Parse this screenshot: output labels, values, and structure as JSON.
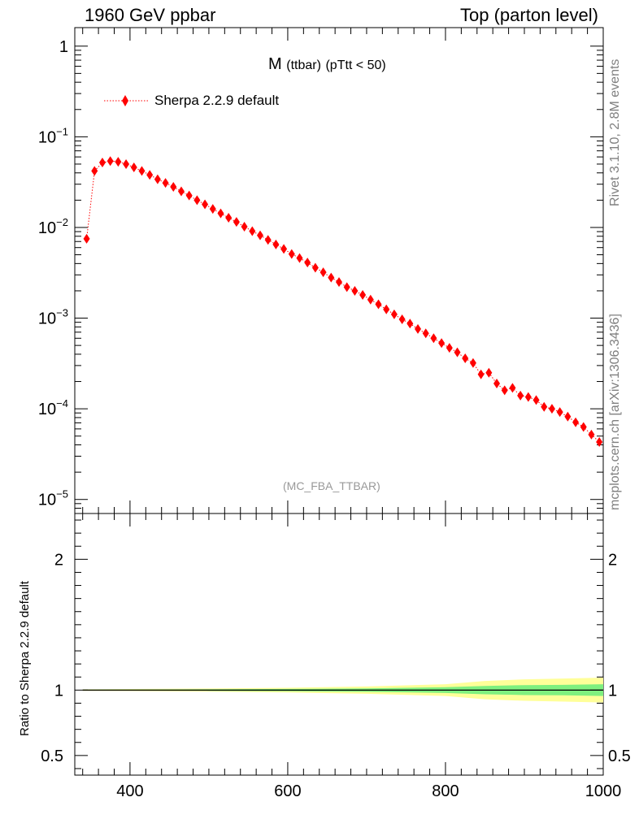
{
  "header": {
    "left": "1960 GeV ppbar",
    "right": "Top (parton level)"
  },
  "side_labels": {
    "rivet": "Rivet 3.1.10,  2.8M events",
    "mcplots": "mcplots.cern.ch [arXiv:1306.3436]"
  },
  "colors": {
    "mc": "#ff0000",
    "band_inner": "#7ff07f",
    "band_outer": "#ffff99"
  },
  "chart_data": [
    {
      "type": "scatter",
      "panel": "main",
      "title": "M",
      "title_sub": "(ttbar)",
      "title_cut": "(pTtt < 50)",
      "analysis_label": "(MC_FBA_TTBAR)",
      "legend": [
        "Sherpa 2.2.9 default"
      ],
      "yscale": "log",
      "xlim": [
        330,
        1000
      ],
      "ylim": [
        7e-06,
        1.6
      ],
      "ytick_values": [
        1,
        0.1,
        0.01,
        0.001,
        0.0001,
        1e-05
      ],
      "ytick_labels": [
        {
          "base": "1",
          "exp": ""
        },
        {
          "base": "10",
          "exp": "−1"
        },
        {
          "base": "10",
          "exp": "−2"
        },
        {
          "base": "10",
          "exp": "−3"
        },
        {
          "base": "10",
          "exp": "−4"
        },
        {
          "base": "10",
          "exp": "−5"
        }
      ],
      "series": [
        {
          "name": "Sherpa 2.2.9 default",
          "color": "#ff0000",
          "x": [
            345,
            355,
            365,
            375,
            385,
            395,
            405,
            415,
            425,
            435,
            445,
            455,
            465,
            475,
            485,
            495,
            505,
            515,
            525,
            535,
            545,
            555,
            565,
            575,
            585,
            595,
            605,
            615,
            625,
            635,
            645,
            655,
            665,
            675,
            685,
            695,
            705,
            715,
            725,
            735,
            745,
            755,
            765,
            775,
            785,
            795,
            805,
            815,
            825,
            835,
            845,
            855,
            865,
            875,
            885,
            895,
            905,
            915,
            925,
            935,
            945,
            955,
            965,
            975,
            985,
            995
          ],
          "y": [
            0.0075,
            0.042,
            0.052,
            0.054,
            0.053,
            0.05,
            0.046,
            0.042,
            0.038,
            0.034,
            0.031,
            0.028,
            0.025,
            0.0225,
            0.02,
            0.018,
            0.016,
            0.0143,
            0.0128,
            0.0115,
            0.0102,
            0.0091,
            0.0082,
            0.0073,
            0.0065,
            0.0058,
            0.0051,
            0.0046,
            0.0041,
            0.0036,
            0.0032,
            0.0028,
            0.0025,
            0.0022,
            0.002,
            0.0018,
            0.0016,
            0.00142,
            0.00125,
            0.0011,
            0.00097,
            0.00087,
            0.00076,
            0.00068,
            0.0006,
            0.00053,
            0.00047,
            0.00042,
            0.00036,
            0.00032,
            0.00024,
            0.00025,
            0.00019,
            0.00016,
            0.00017,
            0.00014,
            0.000135,
            0.000125,
            0.000105,
            0.0001,
            9.2e-05,
            8.2e-05,
            7.1e-05,
            6.3e-05,
            5.2e-05,
            4.3e-05
          ]
        }
      ]
    },
    {
      "type": "area",
      "panel": "ratio",
      "ylabel": "Ratio to Sherpa 2.2.9 default",
      "xlim": [
        330,
        1000
      ],
      "ylim": [
        0.35,
        2.35
      ],
      "ytick_values": [
        2,
        1,
        0.5
      ],
      "ytick_labels": [
        "2",
        "1",
        "0.5"
      ],
      "xtick_values": [
        400,
        600,
        800,
        1000
      ],
      "xtick_labels": [
        "400",
        "600",
        "800",
        "1000"
      ],
      "reference_line": 1,
      "band_x": [
        340,
        400,
        500,
        600,
        700,
        800,
        850,
        900,
        950,
        1000
      ],
      "inner_band_halfwidth": [
        0.003,
        0.004,
        0.006,
        0.009,
        0.013,
        0.022,
        0.032,
        0.038,
        0.04,
        0.045
      ],
      "outer_band_halfwidth": [
        0.006,
        0.008,
        0.012,
        0.018,
        0.028,
        0.045,
        0.07,
        0.082,
        0.088,
        0.095
      ]
    }
  ]
}
